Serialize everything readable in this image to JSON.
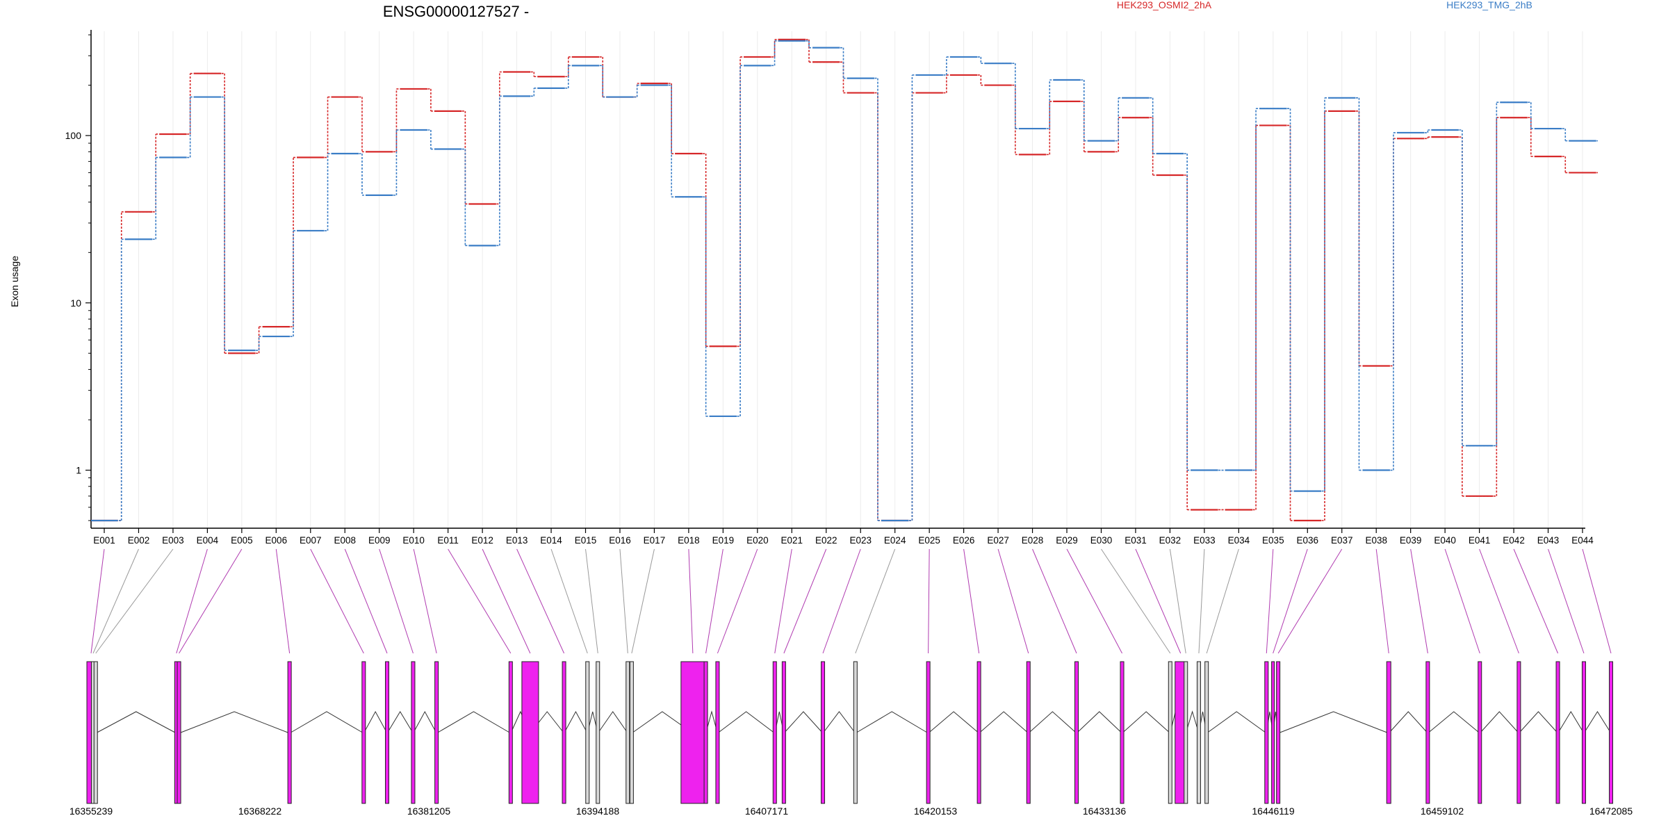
{
  "chart_data": {
    "type": "line",
    "title": "ENSG00000127527 -",
    "ylabel": "Exon usage",
    "xlabel": "",
    "yscale": "log",
    "ylim": [
      0.45,
      420
    ],
    "yticks": [
      1,
      10,
      100
    ],
    "ytick_labels": [
      "1",
      "10",
      "100"
    ],
    "grid": "vertical",
    "legend_position": "top",
    "categories": [
      "E001",
      "E002",
      "E003",
      "E004",
      "E005",
      "E006",
      "E007",
      "E008",
      "E009",
      "E010",
      "E011",
      "E012",
      "E013",
      "E014",
      "E015",
      "E016",
      "E017",
      "E018",
      "E019",
      "E020",
      "E021",
      "E022",
      "E023",
      "E024",
      "E025",
      "E026",
      "E027",
      "E028",
      "E029",
      "E030",
      "E031",
      "E032",
      "E033",
      "E034",
      "E035",
      "E036",
      "E037",
      "E038",
      "E039",
      "E040",
      "E041",
      "E042",
      "E043",
      "E044"
    ],
    "series": [
      {
        "name": "HEK293_OSMI2_2hA",
        "color": "#d62728",
        "values": [
          0.5,
          35,
          102,
          235,
          5,
          7.2,
          74,
          170,
          80,
          190,
          140,
          39,
          240,
          225,
          295,
          170,
          205,
          78,
          5.5,
          295,
          375,
          275,
          180,
          0.5,
          180,
          230,
          200,
          77,
          160,
          80,
          128,
          58,
          0.58,
          0.58,
          115,
          0.5,
          140,
          4.2,
          96,
          98,
          0.7,
          128,
          75,
          60
        ]
      },
      {
        "name": "HEK293_TMG_2hB",
        "color": "#3a7dc6",
        "values": [
          0.5,
          24,
          74,
          170,
          5.2,
          6.3,
          27,
          78,
          44,
          108,
          83,
          22,
          172,
          192,
          262,
          170,
          200,
          43,
          2.1,
          262,
          368,
          335,
          220,
          0.5,
          230,
          295,
          270,
          110,
          215,
          93,
          168,
          78,
          1.0,
          1.0,
          145,
          0.75,
          168,
          1.0,
          104,
          108,
          1.4,
          158,
          110,
          93
        ]
      }
    ],
    "exon_model": {
      "coordinate_labels": [
        "16355239",
        "16368222",
        "16381205",
        "16394188",
        "16407171",
        "16420153",
        "16433136",
        "16446119",
        "16459102",
        "16472085"
      ],
      "coordinate_range": [
        16355239,
        16472085
      ],
      "exon_start_positions": [
        16355239,
        16355400,
        16355600,
        16361800,
        16362000,
        16370500,
        16376200,
        16378000,
        16380000,
        16381800,
        16387500,
        16389000,
        16391600,
        16393400,
        16394200,
        16396500,
        16396800,
        16401500,
        16402500,
        16403400,
        16407800,
        16408500,
        16411500,
        16414000,
        16419600,
        16423500,
        16427300,
        16431000,
        16434500,
        16438200,
        16439000,
        16439400,
        16440400,
        16441000,
        16445600,
        16446100,
        16446500,
        16455000,
        16458000,
        16462000,
        16465000,
        16468000,
        16470000,
        16472085
      ],
      "highlight_color": "#ee22ee",
      "plain_color": "#d9d9d9",
      "highlighted_exons": [
        "E001",
        "E004",
        "E005",
        "E006",
        "E007",
        "E008",
        "E009",
        "E010",
        "E011",
        "E012",
        "E013",
        "E018",
        "E019",
        "E020",
        "E021",
        "E022",
        "E023",
        "E025",
        "E026",
        "E027",
        "E028",
        "E029",
        "E031",
        "E035",
        "E036",
        "E037",
        "E038",
        "E039",
        "E040",
        "E041",
        "E042",
        "E043",
        "E044"
      ]
    }
  }
}
